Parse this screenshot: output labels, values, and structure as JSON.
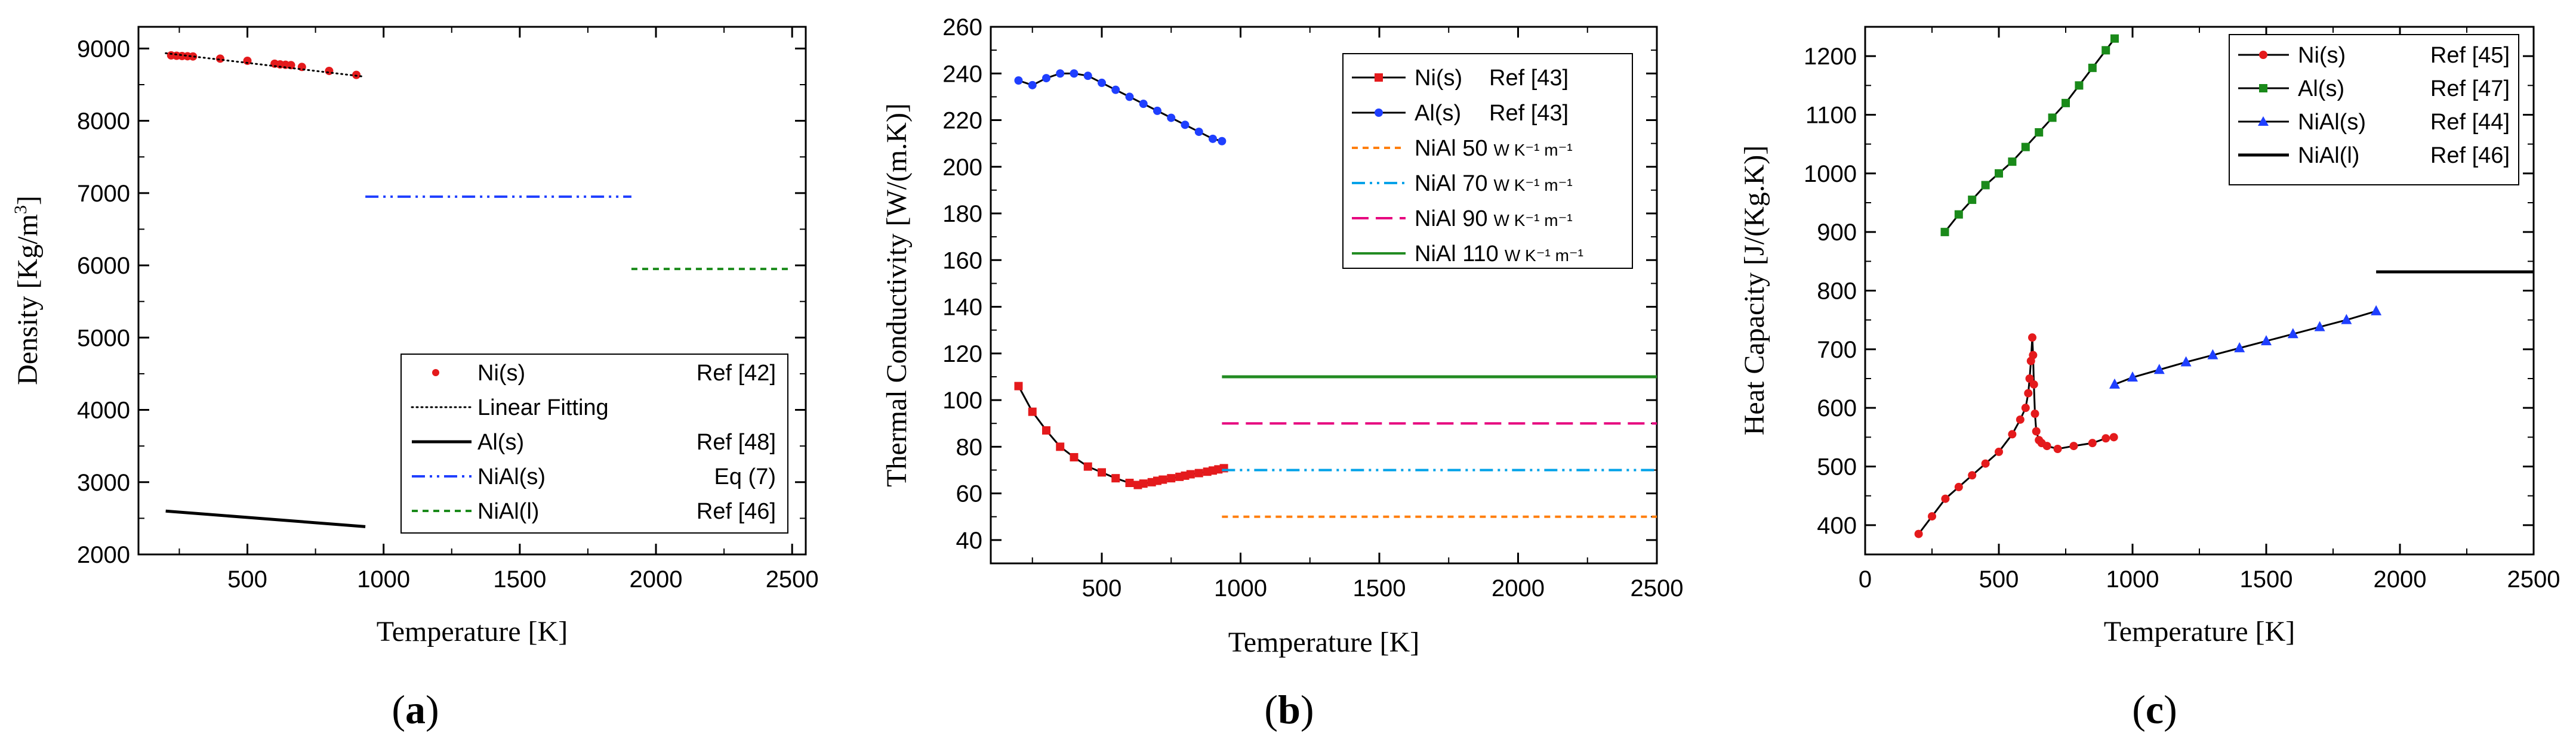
{
  "figure": {
    "panels": [
      {
        "label_open": "(",
        "label_letter": "a",
        "label_close": ")"
      },
      {
        "label_open": "(",
        "label_letter": "b",
        "label_close": ")"
      },
      {
        "label_open": "(",
        "label_letter": "c",
        "label_close": ")"
      }
    ]
  },
  "chart_data": [
    {
      "type": "scatter",
      "id": "a",
      "xlabel": "Temperature [K]",
      "ylabel": "Density [Kg/m³]",
      "ylabel_parts": [
        "Density [Kg/m",
        "3",
        "]"
      ],
      "xlim": [
        100,
        2550
      ],
      "ylim": [
        2000,
        9300
      ],
      "xticks": [
        500,
        1000,
        1500,
        2000,
        2500
      ],
      "yticks": [
        2000,
        3000,
        4000,
        5000,
        6000,
        7000,
        8000,
        9000
      ],
      "legend_position": "lower-right",
      "series": [
        {
          "name": "Ni(s)",
          "ref": "Ref [42]",
          "color": "#e41a1c",
          "style": "points",
          "x": [
            220,
            240,
            260,
            280,
            300,
            400,
            500,
            600,
            620,
            640,
            660,
            700,
            800,
            900
          ],
          "y": [
            8905,
            8900,
            8896,
            8893,
            8890,
            8860,
            8830,
            8790,
            8780,
            8775,
            8770,
            8745,
            8690,
            8635
          ]
        },
        {
          "name": "Linear Fitting",
          "ref": "",
          "color": "#000000",
          "style": "dotted",
          "x": [
            200,
            930
          ],
          "y": [
            8935,
            8610
          ]
        },
        {
          "name": "Al(s)",
          "ref": "Ref [48]",
          "color": "#000000",
          "style": "solid",
          "x": [
            200,
            933
          ],
          "y": [
            2600,
            2385
          ]
        },
        {
          "name": "NiAl(s)",
          "ref": "Eq (7)",
          "color": "#1f3fff",
          "style": "dashdotdot",
          "x": [
            933,
            1910
          ],
          "y": [
            6950,
            6950
          ]
        },
        {
          "name": "NiAl(l)",
          "ref": "Ref [46]",
          "color": "#1a8a1a",
          "style": "dashed",
          "x": [
            1910,
            2500
          ],
          "y": [
            5950,
            5950
          ]
        }
      ]
    },
    {
      "type": "line",
      "id": "b",
      "xlabel": "Temperature [K]",
      "ylabel": "Thermal Conductivity [W/(m.K)]",
      "xlim": [
        100,
        2500
      ],
      "ylim": [
        30,
        260
      ],
      "xticks": [
        500,
        1000,
        1500,
        2000,
        2500
      ],
      "yticks": [
        40,
        60,
        80,
        100,
        120,
        140,
        160,
        180,
        200,
        220,
        240,
        260
      ],
      "legend_position": "top-right",
      "series": [
        {
          "name": "Ni(s)",
          "ref": "Ref [43]",
          "color": "#e41a1c",
          "marker": "square",
          "style": "solid",
          "x": [
            200,
            250,
            300,
            350,
            400,
            450,
            500,
            550,
            600,
            630,
            650,
            680,
            700,
            720,
            750,
            780,
            800,
            820,
            850,
            880,
            900,
            920,
            940
          ],
          "y": [
            106,
            95,
            87,
            80,
            75.5,
            71.5,
            69,
            66.5,
            64.5,
            63.6,
            64.2,
            64.8,
            65.4,
            65.9,
            66.5,
            67.1,
            67.6,
            68.2,
            68.7,
            69.3,
            69.8,
            70.3,
            70.8
          ]
        },
        {
          "name": "Al(s)",
          "ref": "Ref [43]",
          "color": "#1f3fff",
          "marker": "circle",
          "style": "solid",
          "x": [
            200,
            250,
            300,
            350,
            400,
            450,
            500,
            550,
            600,
            650,
            700,
            750,
            800,
            850,
            900,
            933
          ],
          "y": [
            237,
            235,
            238,
            240,
            240,
            239,
            236,
            233,
            230,
            227,
            224,
            221,
            218,
            215,
            212,
            211
          ]
        },
        {
          "name": "NiAl 50",
          "unit": "W K⁻¹ m⁻¹",
          "color": "#ff7f0e",
          "style": "dashed",
          "x": [
            933,
            2500
          ],
          "y": [
            50,
            50
          ]
        },
        {
          "name": "NiAl 70",
          "unit": "W K⁻¹ m⁻¹",
          "color": "#00a2e8",
          "style": "dashdotdot",
          "x": [
            933,
            2500
          ],
          "y": [
            70,
            70
          ]
        },
        {
          "name": "NiAl 90",
          "unit": "W K⁻¹ m⁻¹",
          "color": "#e6007e",
          "style": "longdash",
          "x": [
            933,
            2500
          ],
          "y": [
            90,
            90
          ]
        },
        {
          "name": "NiAl 110",
          "unit": "W K⁻¹ m⁻¹",
          "color": "#228b22",
          "style": "solid",
          "x": [
            933,
            2500
          ],
          "y": [
            110,
            110
          ]
        }
      ]
    },
    {
      "type": "line",
      "id": "c",
      "xlabel": "Temperature [K]",
      "ylabel": "Heat Capacity [J/(Kg.K)]",
      "xlim": [
        0,
        2500
      ],
      "ylim": [
        350,
        1250
      ],
      "xticks": [
        0,
        500,
        1000,
        1500,
        2000,
        2500
      ],
      "yticks": [
        400,
        500,
        600,
        700,
        800,
        900,
        1000,
        1100,
        1200
      ],
      "legend_position": "top-right",
      "series": [
        {
          "name": "Ni(s)",
          "ref": "Ref [45]",
          "color": "#e41a1c",
          "marker": "circle",
          "style": "solid",
          "x": [
            200,
            250,
            300,
            350,
            400,
            450,
            500,
            550,
            580,
            600,
            610,
            615,
            620,
            625,
            628,
            631,
            635,
            640,
            650,
            660,
            680,
            720,
            780,
            850,
            900,
            930
          ],
          "y": [
            385,
            415,
            445,
            465,
            485,
            505,
            525,
            555,
            580,
            600,
            625,
            650,
            680,
            720,
            690,
            640,
            590,
            560,
            545,
            540,
            535,
            530,
            535,
            540,
            548,
            550
          ]
        },
        {
          "name": "Al(s)",
          "ref": "Ref [47]",
          "color": "#1a8a1a",
          "marker": "square",
          "style": "solid",
          "x": [
            298,
            350,
            400,
            450,
            500,
            550,
            600,
            650,
            700,
            750,
            800,
            850,
            900,
            933
          ],
          "y": [
            900,
            930,
            955,
            980,
            1000,
            1020,
            1045,
            1070,
            1095,
            1120,
            1150,
            1180,
            1210,
            1230
          ]
        },
        {
          "name": "NiAl(s)",
          "ref": "Ref [44]",
          "color": "#1f3fff",
          "marker": "triangle",
          "style": "solid",
          "x": [
            933,
            1000,
            1100,
            1200,
            1300,
            1400,
            1500,
            1600,
            1700,
            1800,
            1911
          ],
          "y": [
            640,
            652,
            665,
            678,
            690,
            702,
            714,
            726,
            738,
            750,
            765
          ]
        },
        {
          "name": "NiAl(l)",
          "ref": "Ref [46]",
          "color": "#000000",
          "marker": "none",
          "style": "solid",
          "x": [
            1911,
            2500
          ],
          "y": [
            832,
            832
          ]
        }
      ]
    }
  ]
}
